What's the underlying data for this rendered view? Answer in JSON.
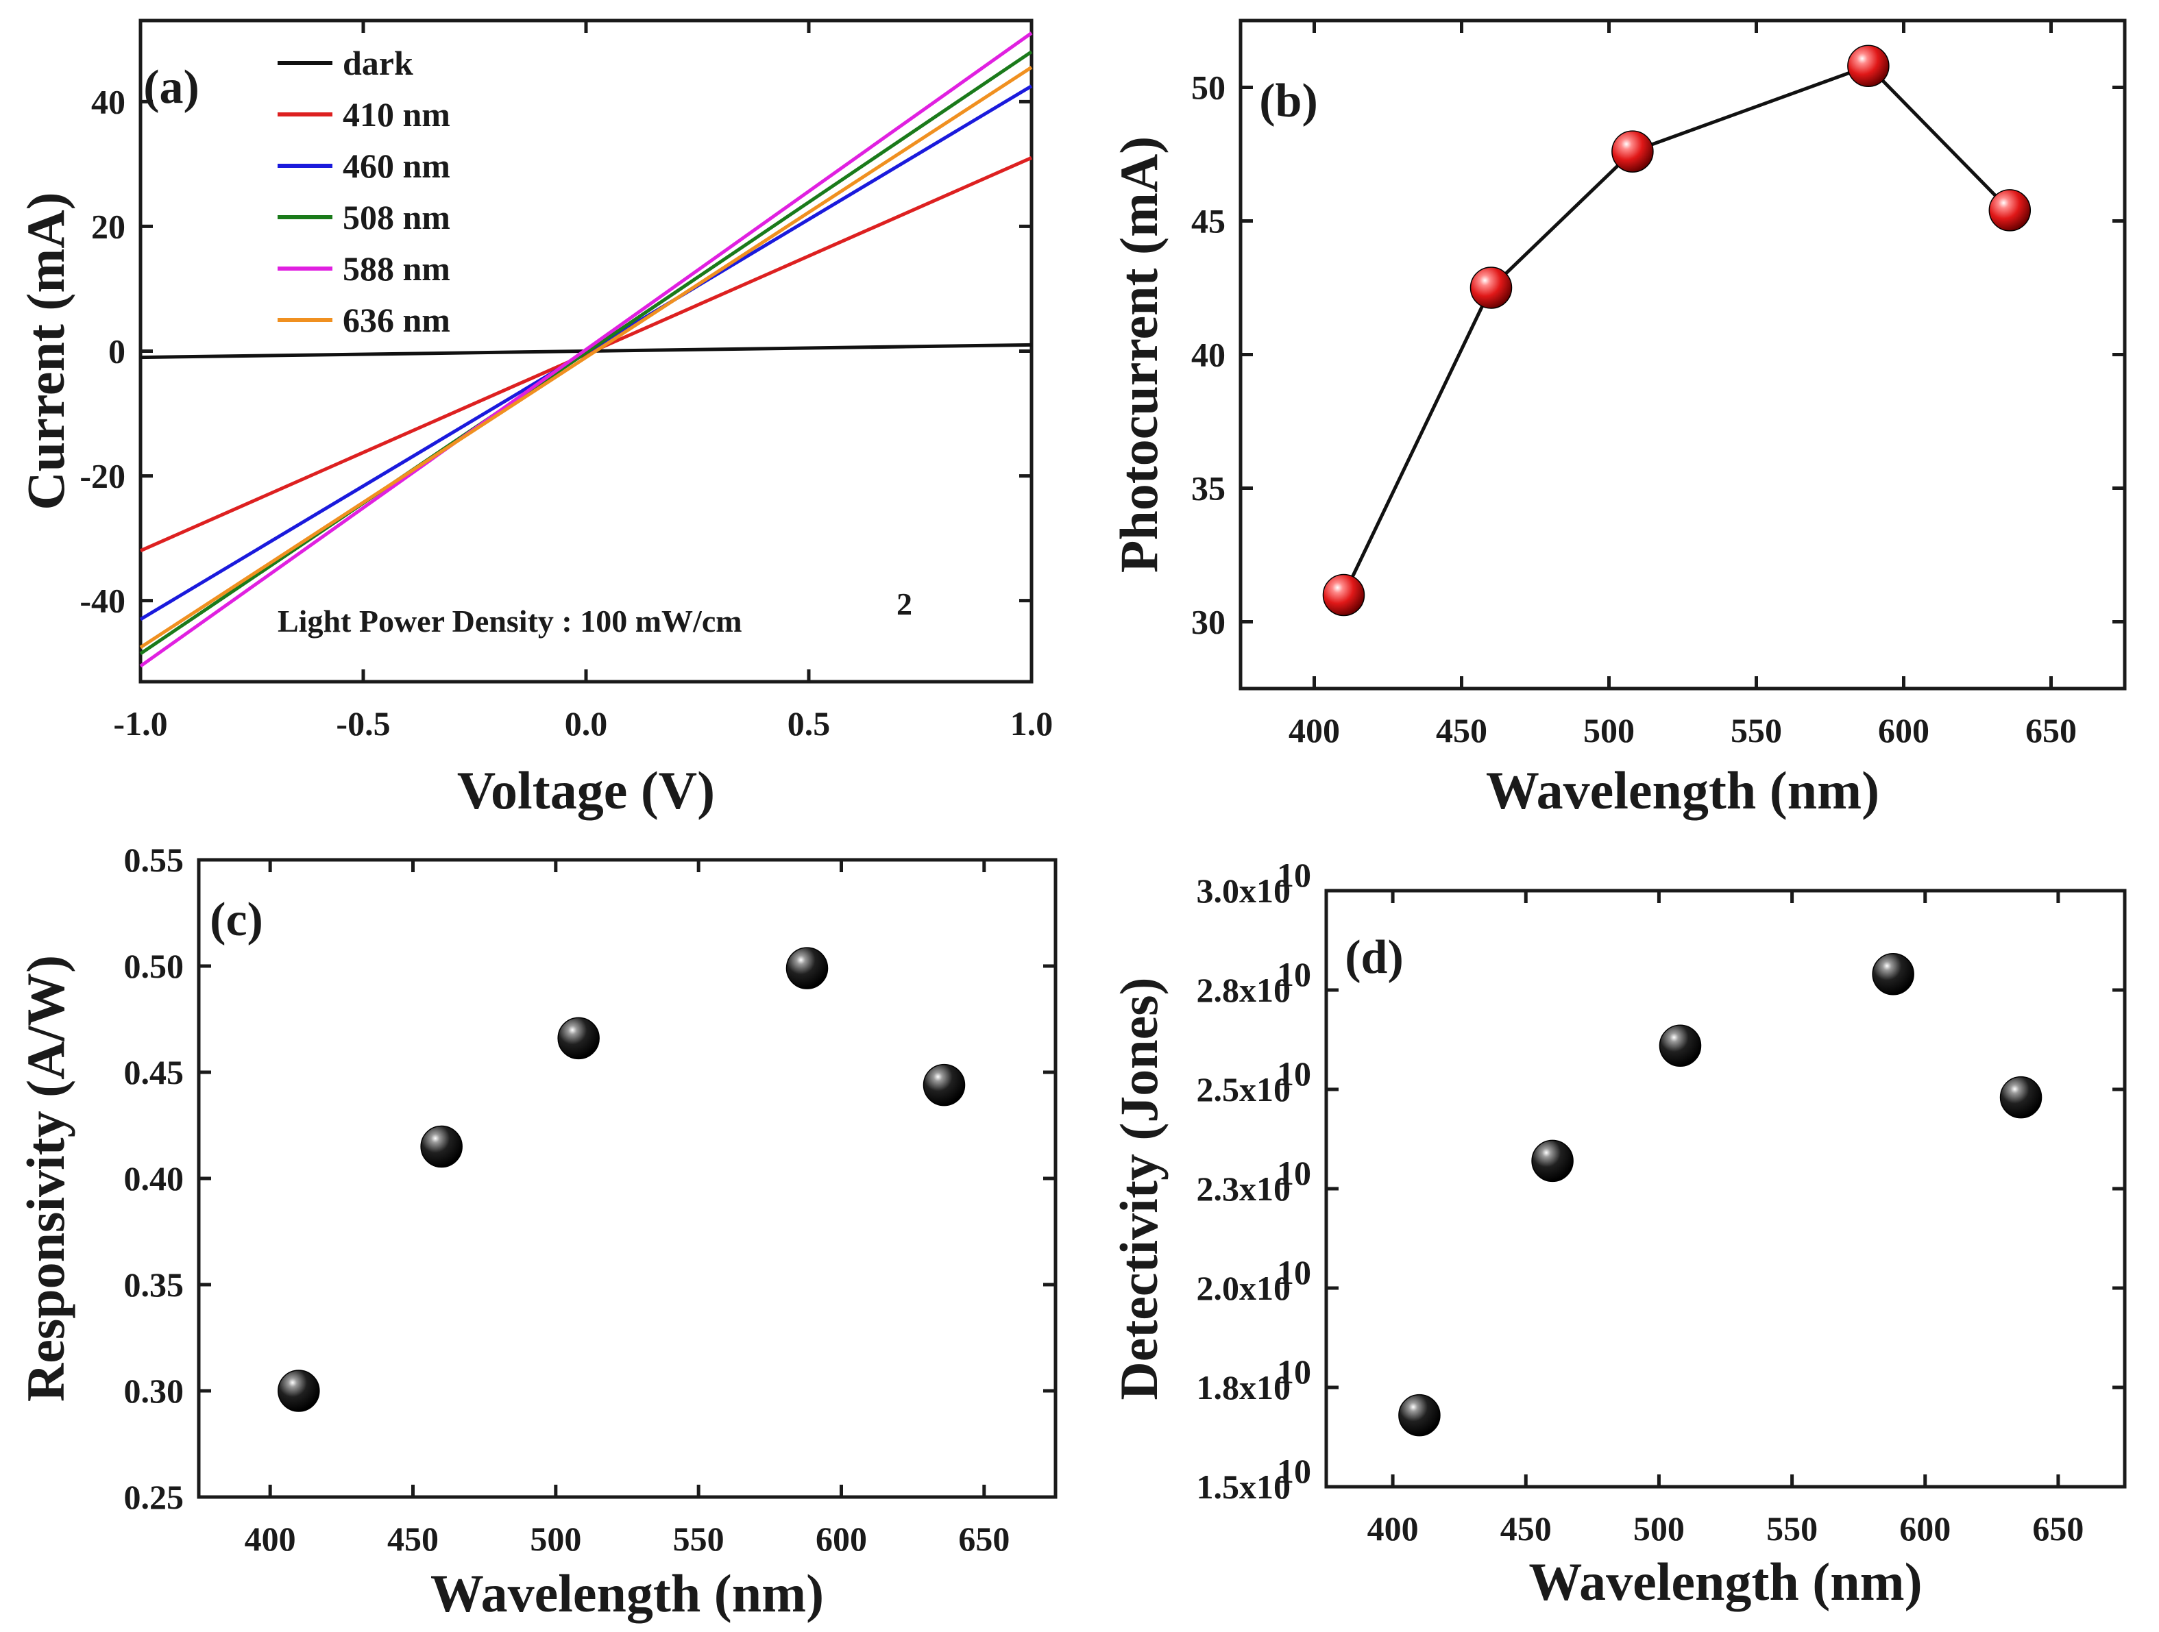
{
  "chart_data": [
    {
      "id": "a",
      "type": "line",
      "panel_label": "(a)",
      "xlabel": "Voltage (V)",
      "ylabel": "Current (mA)",
      "xlim": [
        -1.0,
        1.0
      ],
      "ylim": [
        -53,
        53
      ],
      "xticks": [
        -1.0,
        -0.5,
        0.0,
        0.5,
        1.0
      ],
      "xtick_labels": [
        "-1.0",
        "-0.5",
        "0.0",
        "0.5",
        "1.0"
      ],
      "yticks": [
        -40,
        -20,
        0,
        20,
        40
      ],
      "ytick_labels": [
        "-40",
        "-20",
        "0",
        "20",
        "40"
      ],
      "legend_position": "top-left",
      "annotation": "Light Power Density : 100 mW/cm",
      "annotation_sup": "2",
      "series": [
        {
          "name": "dark",
          "color": "#111111",
          "x": [
            -1.0,
            1.0
          ],
          "y": [
            -1.0,
            1.0
          ]
        },
        {
          "name": "410 nm",
          "color": "#dd2020",
          "x": [
            -1.0,
            1.0
          ],
          "y": [
            -32.0,
            31.0
          ]
        },
        {
          "name": "460 nm",
          "color": "#1a1adc",
          "x": [
            -1.0,
            1.0
          ],
          "y": [
            -43.0,
            42.5
          ]
        },
        {
          "name": "508 nm",
          "color": "#1a7a1a",
          "x": [
            -1.0,
            1.0
          ],
          "y": [
            -48.5,
            48.0
          ]
        },
        {
          "name": "588 nm",
          "color": "#e020e0",
          "x": [
            -1.0,
            1.0
          ],
          "y": [
            -50.5,
            51.0
          ]
        },
        {
          "name": "636 nm",
          "color": "#f09020",
          "x": [
            -1.0,
            1.0
          ],
          "y": [
            -47.5,
            45.5
          ]
        }
      ]
    },
    {
      "id": "b",
      "type": "line",
      "panel_label": "(b)",
      "xlabel": "Wavelength (nm)",
      "ylabel": "Photocurrent (mA)",
      "xlim": [
        375,
        675
      ],
      "ylim": [
        27.5,
        52.5
      ],
      "xticks": [
        400,
        450,
        500,
        550,
        600,
        650
      ],
      "xtick_labels": [
        "400",
        "450",
        "500",
        "550",
        "600",
        "650"
      ],
      "yticks": [
        30,
        35,
        40,
        45,
        50
      ],
      "ytick_labels": [
        "30",
        "35",
        "40",
        "45",
        "50"
      ],
      "marker_color": "#e01818",
      "x": [
        410,
        460,
        508,
        588,
        636
      ],
      "y": [
        31.0,
        42.5,
        47.6,
        50.8,
        45.4
      ]
    },
    {
      "id": "c",
      "type": "scatter",
      "panel_label": "(c)",
      "xlabel": "Wavelength (nm)",
      "ylabel": "Responsivity (A/W)",
      "xlim": [
        375,
        675
      ],
      "ylim": [
        0.25,
        0.55
      ],
      "xticks": [
        400,
        450,
        500,
        550,
        600,
        650
      ],
      "xtick_labels": [
        "400",
        "450",
        "500",
        "550",
        "600",
        "650"
      ],
      "yticks": [
        0.25,
        0.3,
        0.35,
        0.4,
        0.45,
        0.5,
        0.55
      ],
      "ytick_labels": [
        "0.25",
        "0.30",
        "0.35",
        "0.40",
        "0.45",
        "0.50",
        "0.55"
      ],
      "marker_color": "#111111",
      "x": [
        410,
        460,
        508,
        588,
        636
      ],
      "y": [
        0.3,
        0.415,
        0.466,
        0.499,
        0.444
      ]
    },
    {
      "id": "d",
      "type": "scatter",
      "panel_label": "(d)",
      "xlabel": "Wavelength (nm)",
      "ylabel": "Detectivity (Jones)",
      "xlim": [
        375,
        675
      ],
      "ylim": [
        15000000000.0,
        30000000000.0
      ],
      "xticks": [
        400,
        450,
        500,
        550,
        600,
        650
      ],
      "xtick_labels": [
        "400",
        "450",
        "500",
        "550",
        "600",
        "650"
      ],
      "yticks": [
        15000000000.0,
        17500000000.0,
        20000000000.0,
        22500000000.0,
        25000000000.0,
        27500000000.0,
        30000000000.0
      ],
      "ytick_labels": [
        "1.5x10",
        "1.8x10",
        "2.0x10",
        "2.3x10",
        "2.5x10",
        "2.8x10",
        "3.0x10"
      ],
      "ytick_exponent": "10",
      "marker_color": "#111111",
      "x": [
        410,
        460,
        508,
        588,
        636
      ],
      "y": [
        16800000000.0,
        23200000000.0,
        26100000000.0,
        27900000000.0,
        24800000000.0
      ]
    }
  ]
}
